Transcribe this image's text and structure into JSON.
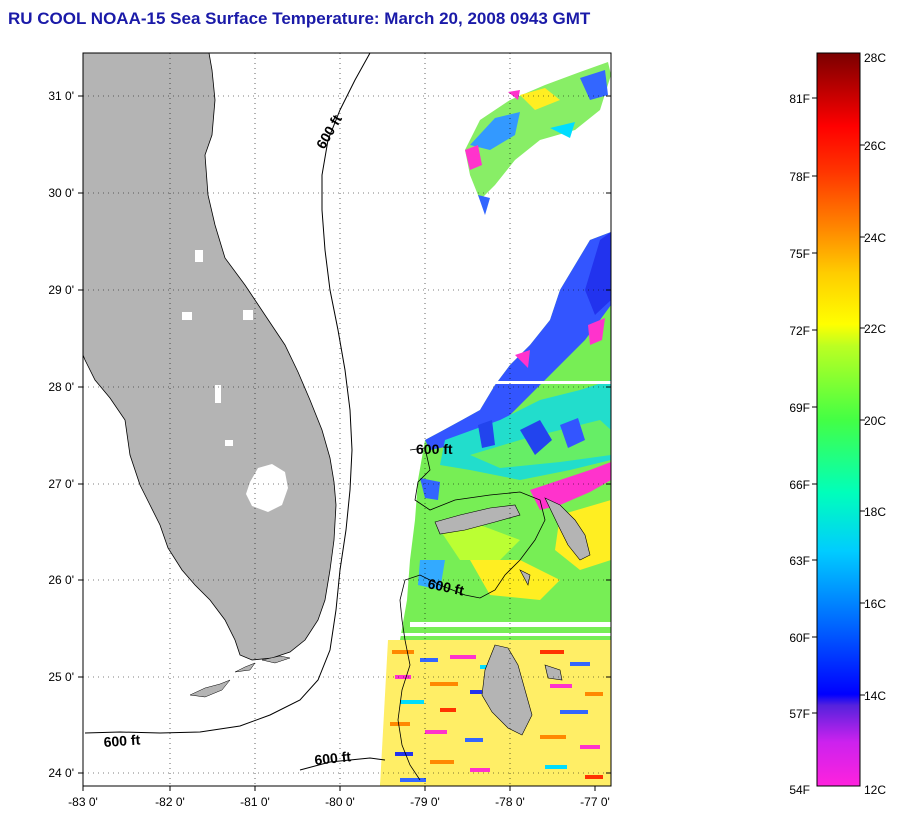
{
  "title": "RU COOL  NOAA-15  Sea Surface Temperature:  March 20, 2008 0943 GMT",
  "map": {
    "lat_ticks": [
      "31 0'",
      "30 0'",
      "29 0'",
      "28 0'",
      "27 0'",
      "26 0'",
      "25 0'",
      "24 0'"
    ],
    "lon_ticks": [
      "-83 0'",
      "-82 0'",
      "-81 0'",
      "-80 0'",
      "-79 0'",
      "-78 0'",
      "-77 0'"
    ],
    "contour_labels": [
      "600 ft",
      "600 ft",
      "600 ft",
      "600 ft",
      "600 ft"
    ],
    "land_color": "#b4b4b4",
    "grid": "dotted"
  },
  "colorbar": {
    "fahrenheit_labels": [
      "81F",
      "78F",
      "75F",
      "72F",
      "69F",
      "66F",
      "63F",
      "60F",
      "57F",
      "54F"
    ],
    "celsius_labels": [
      "28C",
      "26C",
      "24C",
      "22C",
      "20C",
      "18C",
      "16C",
      "14C",
      "12C"
    ],
    "range_c": [
      12,
      28
    ],
    "range_f": [
      54,
      82
    ]
  }
}
